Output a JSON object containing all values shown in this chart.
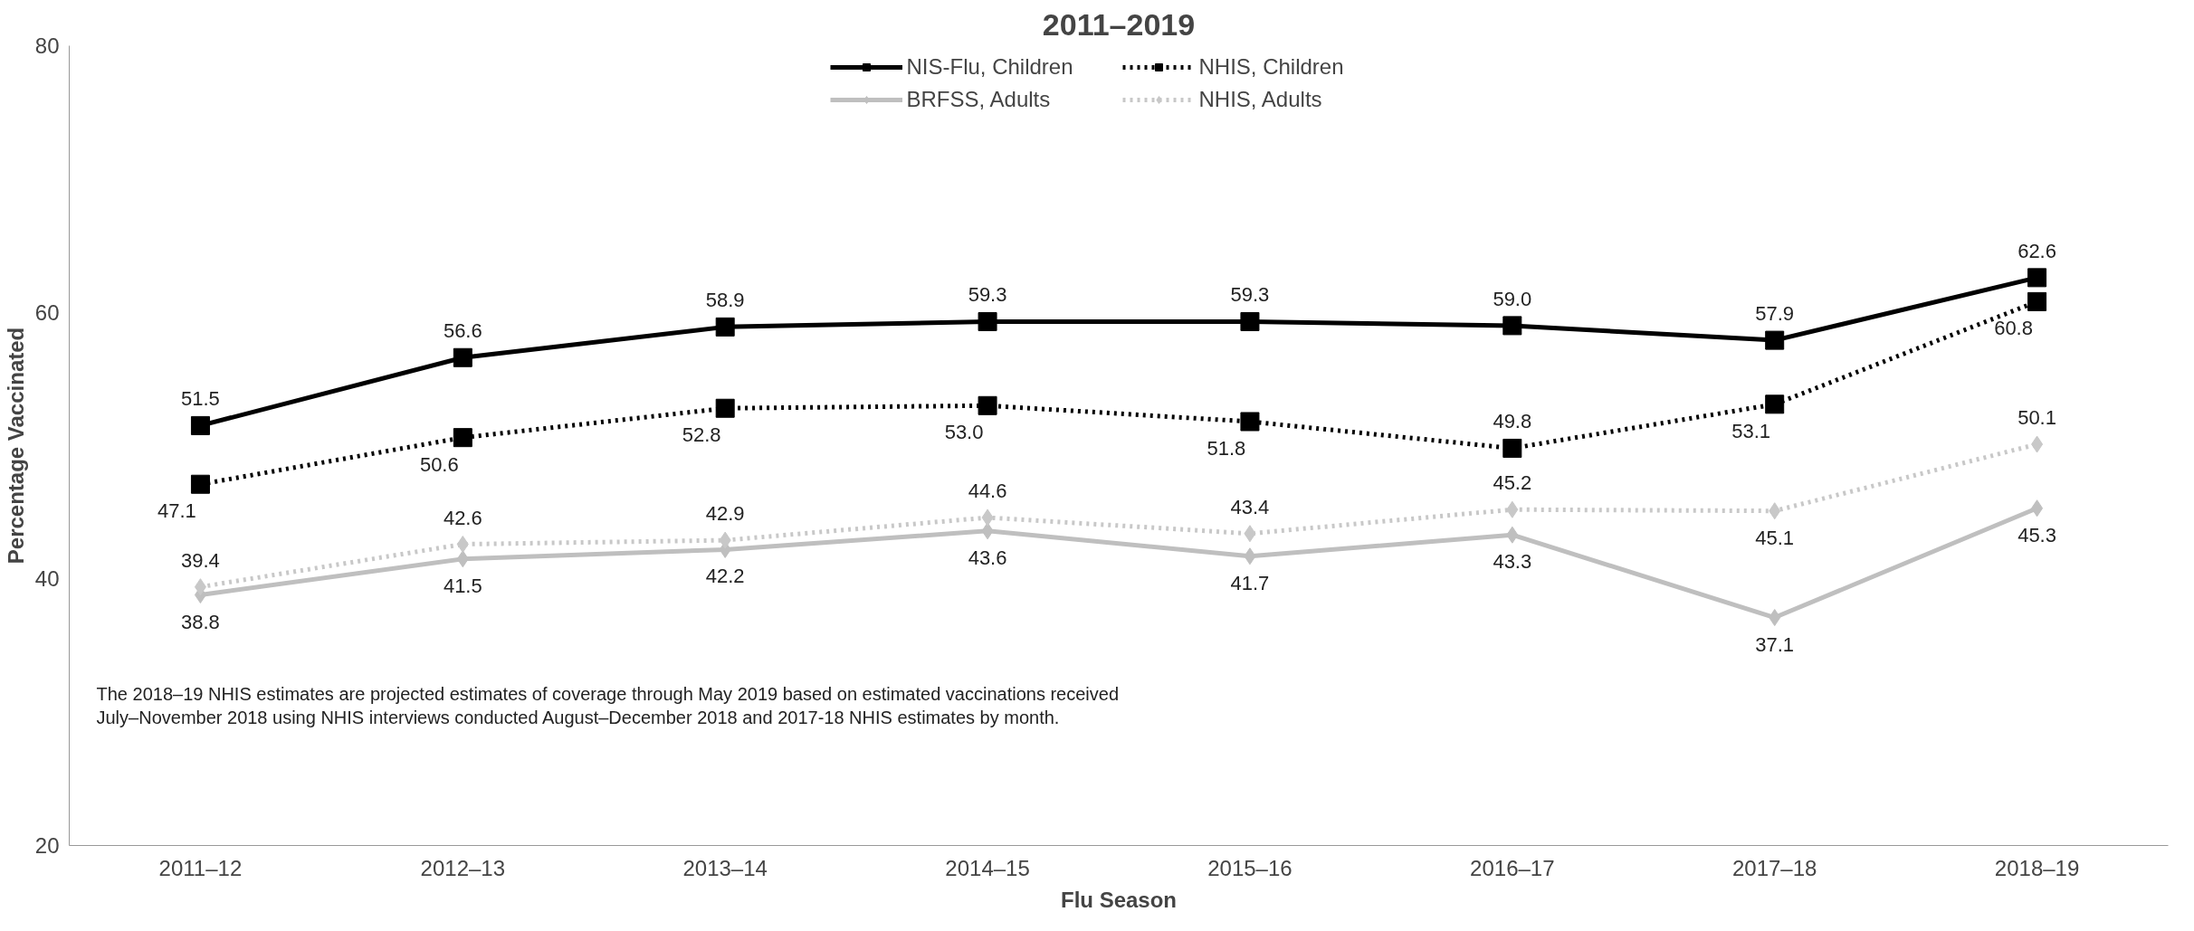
{
  "chart_data": {
    "type": "line",
    "title": "2011–2019",
    "xlabel": "Flu Season",
    "ylabel": "Percentage Vaccinated",
    "categories": [
      "2011–12",
      "2012–13",
      "2013–14",
      "2014–15",
      "2015–16",
      "2016–17",
      "2017–18",
      "2018–19"
    ],
    "series": [
      {
        "name": "NIS-Flu, Children",
        "color": "#000000",
        "marker": "square",
        "line_style": "solid",
        "values": [
          51.5,
          56.6,
          58.9,
          59.3,
          59.3,
          59.0,
          57.9,
          62.6
        ],
        "value_labels": [
          "51.5",
          "56.6",
          "58.9",
          "59.3",
          "59.3",
          "59.0",
          "57.9",
          "62.6"
        ]
      },
      {
        "name": "NHIS, Children",
        "color": "#000000",
        "marker": "square",
        "line_style": "dotted",
        "values": [
          47.1,
          50.6,
          52.8,
          53.0,
          51.8,
          49.8,
          53.1,
          60.8
        ],
        "value_labels": [
          "47.1",
          "50.6",
          "52.8",
          "53.0",
          "51.8",
          "49.8",
          "53.1",
          "60.8"
        ]
      },
      {
        "name": "BRFSS, Adults",
        "color": "#bfbfbf",
        "marker": "diamond",
        "line_style": "solid",
        "values": [
          38.8,
          41.5,
          42.2,
          43.6,
          41.7,
          43.3,
          37.1,
          45.3
        ],
        "value_labels": [
          "38.8",
          "41.5",
          "42.2",
          "43.6",
          "41.7",
          "43.3",
          "37.1",
          "45.3"
        ]
      },
      {
        "name": "NHIS, Adults",
        "color": "#c8c8c8",
        "marker": "diamond",
        "line_style": "dotted",
        "values": [
          39.4,
          42.6,
          42.9,
          44.6,
          43.4,
          45.2,
          45.1,
          50.1
        ],
        "value_labels": [
          "39.4",
          "42.6",
          "42.9",
          "44.6",
          "43.4",
          "45.2",
          "45.1",
          "50.1"
        ]
      }
    ],
    "ylim": [
      20,
      80
    ],
    "yticks": [
      20,
      40,
      60,
      80
    ],
    "grid": false,
    "legend": "top",
    "annotations": [
      "The 2018–19 NHIS estimates are projected estimates of coverage through May 2019 based on estimated vaccinations received July–November 2018 using NHIS interviews conducted August–December 2018 and 2017-18 NHIS estimates by month."
    ]
  }
}
